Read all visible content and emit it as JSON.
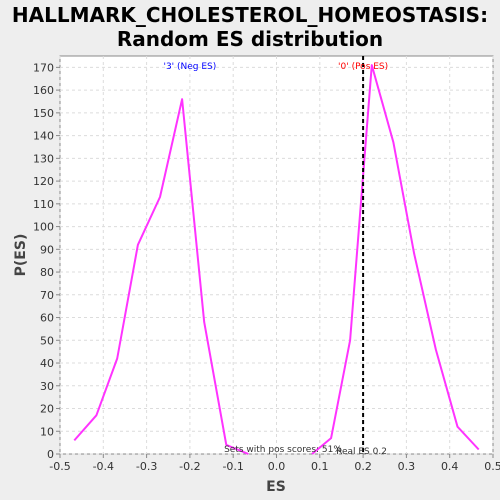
{
  "chart_data": {
    "type": "line",
    "title_lines": [
      "HALLMARK_CHOLESTEROL_HOMEOSTASIS:",
      "Random ES distribution"
    ],
    "xlabel": "ES",
    "ylabel": "P(ES)",
    "xlim": [
      -0.5,
      0.5
    ],
    "ylim": [
      0,
      175
    ],
    "xticks": [
      -0.5,
      -0.4,
      -0.3,
      -0.2,
      -0.1,
      0.0,
      0.1,
      0.2,
      0.3,
      0.4,
      0.5
    ],
    "xtick_labels": [
      "-0.5",
      "-0.4",
      "-0.3",
      "-0.2",
      "-0.1",
      "0.0",
      "0.1",
      "0.2",
      "0.3",
      "0.4",
      "0.5"
    ],
    "yticks": [
      0,
      10,
      20,
      30,
      40,
      50,
      60,
      70,
      80,
      90,
      100,
      110,
      120,
      130,
      140,
      150,
      160,
      170
    ],
    "grid": true,
    "line_color": "#ff33ff",
    "series": [
      {
        "x": [
          -0.467,
          -0.416,
          -0.368,
          -0.32,
          -0.269,
          -0.218,
          -0.167,
          -0.116,
          -0.065
        ],
        "y": [
          6,
          17,
          42,
          92,
          113,
          156,
          58,
          4,
          0
        ]
      },
      {
        "x": [
          0.082,
          0.126,
          0.17,
          0.22,
          0.27,
          0.318,
          0.368,
          0.418,
          0.467
        ],
        "y": [
          0,
          7,
          50,
          171,
          137,
          88,
          46,
          12,
          2
        ]
      }
    ],
    "real_es": 0.2,
    "real_es_label": "Real ES 0.2",
    "neg_label": "'3' (Neg ES)",
    "pos_label": "'0' (Pos ES)",
    "neg_label_color": "#0000ff",
    "pos_label_color": "#ff0000",
    "footnote": "Sets with pos scores: 51%"
  }
}
